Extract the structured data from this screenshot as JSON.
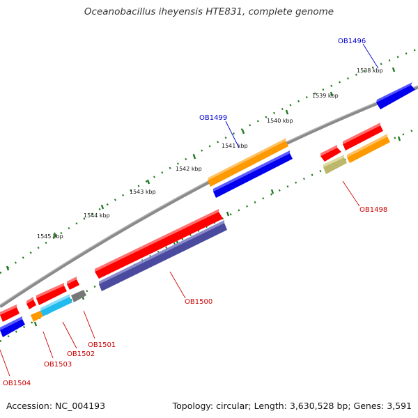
{
  "title": "Oceanobacillus iheyensis HTE831, complete genome",
  "footer": {
    "accession": "Accession: NC_004193",
    "summary": "Topology: circular; Length: 3,630,528 bp; Genes: 3,591"
  },
  "scale_labels": [
    "1538 kbp",
    "1539 kbp",
    "1540 kbp",
    "1541 kbp",
    "1542 kbp",
    "1543 kbp",
    "1544 kbp",
    "1545 kbp"
  ],
  "gene_labels": {
    "ob1496": "OB1496",
    "ob1498": "OB1498",
    "ob1499": "OB1499",
    "ob1500": "OB1500",
    "ob1501": "OB1501",
    "ob1502": "OB1502",
    "ob1503": "OB1503",
    "ob1504": "OB1504"
  },
  "colors": {
    "backbone": "#8a8a8a",
    "tick": "#1f7a1f",
    "red": "#ff0000",
    "blue": "#0000ee",
    "orange": "#ff9900",
    "navy": "#4a4a9e",
    "cyan": "#22bbee",
    "gray": "#777777",
    "olive": "#bdb76b",
    "label_blue": "#0000cc",
    "label_red": "#cc0000"
  }
}
